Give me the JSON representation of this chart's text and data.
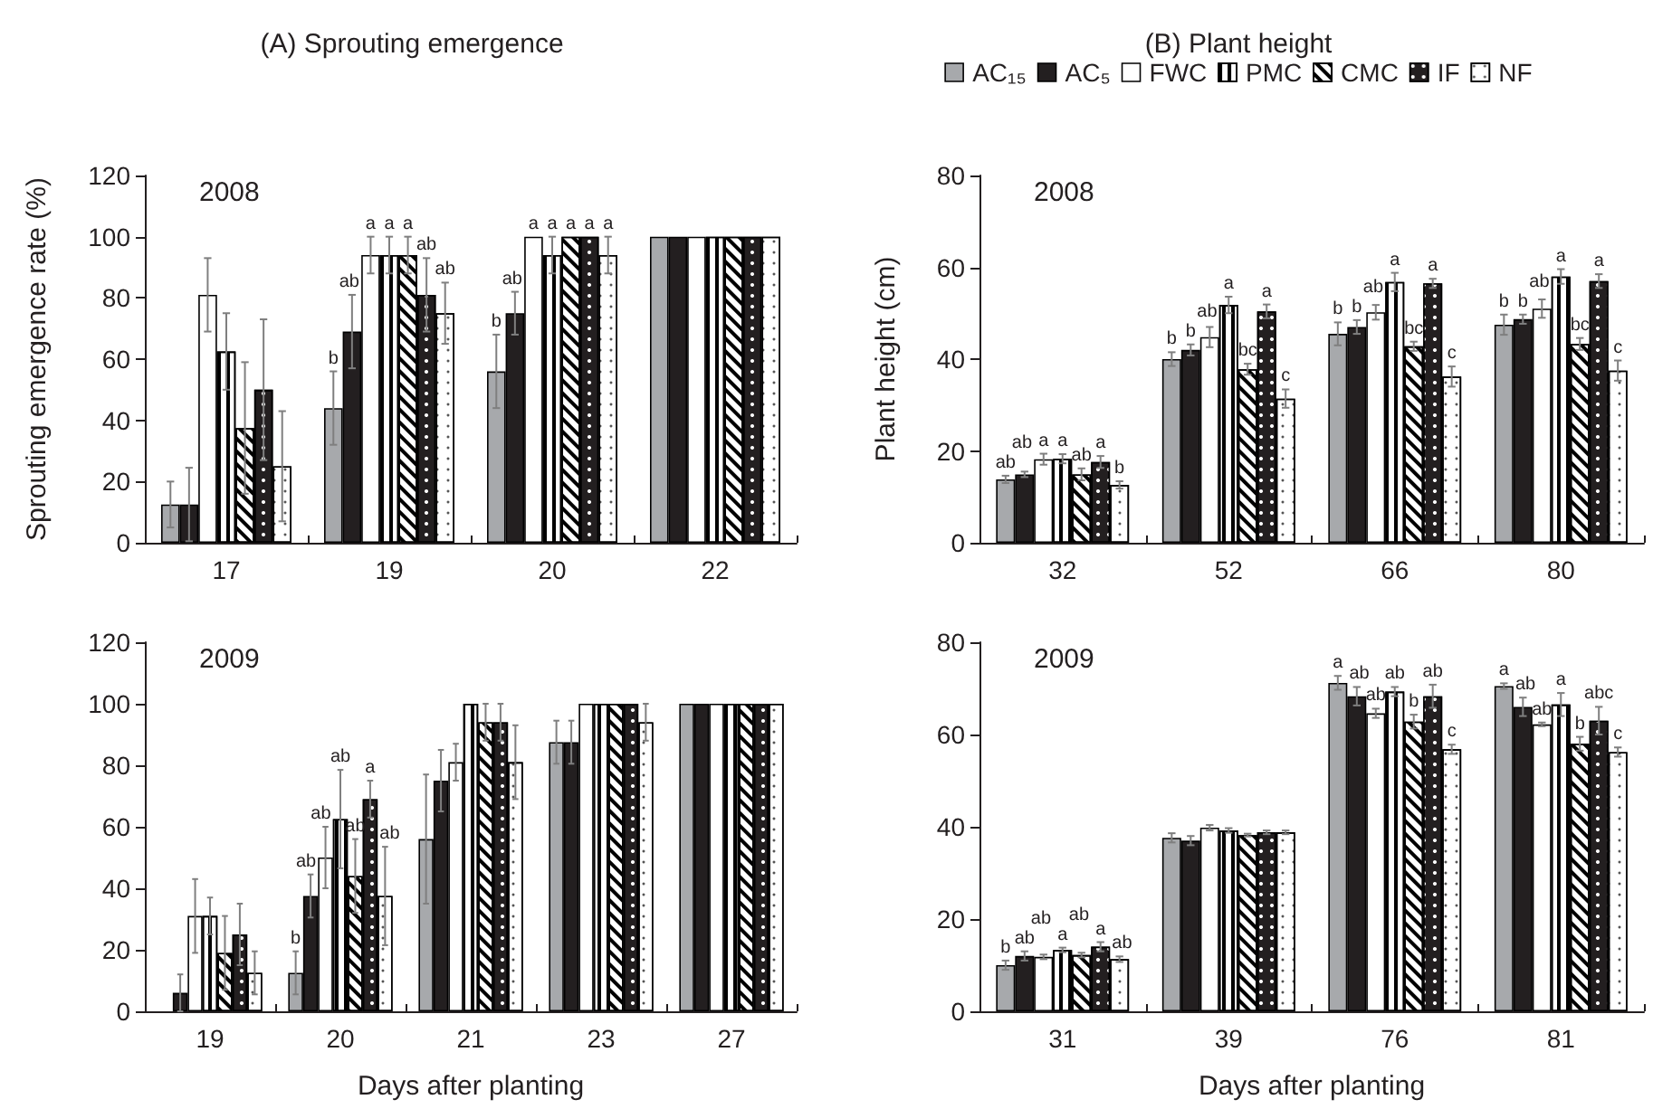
{
  "chart_data": [
    {
      "type": "bar",
      "title": "(A) Sprouting emergence",
      "ylabel": "Sprouting emergence rate (%)",
      "annotations": [
        "2008"
      ],
      "categories": [
        "17",
        "19",
        "20",
        "22"
      ],
      "ylim": [
        0,
        120
      ],
      "yticks": [
        0,
        20,
        40,
        60,
        80,
        100,
        120
      ],
      "grid": false,
      "series": [
        {
          "color": "#a7a9ac",
          "values": [
            12.5,
            44,
            56,
            100
          ],
          "errors": [
            7.5,
            12,
            12,
            null
          ],
          "value_labels": [
            null,
            "b",
            "b",
            null
          ]
        },
        {
          "color": "#231f20",
          "values": [
            12.5,
            69,
            75,
            100
          ],
          "errors": [
            12,
            12,
            7,
            null
          ],
          "value_labels": [
            null,
            "ab",
            "ab",
            null
          ]
        },
        {
          "color": "#ffffff",
          "values": [
            81,
            94,
            100,
            100
          ],
          "errors": [
            12,
            6,
            null,
            null
          ],
          "value_labels": [
            null,
            "a",
            "a",
            null
          ]
        },
        {
          "color": "#ffffff",
          "values": [
            62.5,
            94,
            94,
            100
          ],
          "errors": [
            12.5,
            6,
            6,
            null
          ],
          "value_labels": [
            null,
            "a",
            "a",
            null
          ]
        },
        {
          "color": "#ffffff",
          "values": [
            37.5,
            94,
            100,
            100
          ],
          "errors": [
            21.5,
            6,
            null,
            null
          ],
          "value_labels": [
            null,
            "a",
            "a",
            null
          ]
        },
        {
          "color": "#231f20",
          "values": [
            50,
            81,
            100,
            100
          ],
          "errors": [
            23,
            12,
            null,
            null
          ],
          "value_labels": [
            null,
            "ab",
            "a",
            null
          ]
        },
        {
          "color": "#ffffff",
          "values": [
            25,
            75,
            94,
            100
          ],
          "errors": [
            18,
            10,
            6,
            null
          ],
          "value_labels": [
            null,
            "ab",
            "a",
            null
          ]
        }
      ]
    },
    {
      "type": "bar",
      "title": "(B) Plant height",
      "ylabel": "Plant height (cm)",
      "annotations": [
        "2008"
      ],
      "categories": [
        "32",
        "52",
        "66",
        "80"
      ],
      "ylim": [
        0,
        80
      ],
      "yticks": [
        0,
        20,
        40,
        60,
        80
      ],
      "grid": false,
      "legend": "top",
      "series": [
        {
          "name": "AC₁₅",
          "color": "#a7a9ac",
          "values": [
            13.8,
            40,
            45.5,
            47.5
          ],
          "errors": [
            0.8,
            1.5,
            2.5,
            2.2
          ],
          "value_labels": [
            "ab",
            "b",
            "b",
            "b"
          ]
        },
        {
          "name": "AC₅",
          "color": "#231f20",
          "values": [
            14.9,
            42,
            47,
            48.7
          ],
          "errors": [
            0.6,
            1.2,
            1.5,
            1
          ],
          "value_labels": [
            "ab",
            "b",
            "b",
            "b"
          ]
        },
        {
          "name": "FWC",
          "color": "#ffffff",
          "values": [
            18.2,
            44.8,
            50.2,
            51
          ],
          "errors": [
            1.2,
            2.2,
            1.6,
            2
          ],
          "value_labels": [
            "a",
            "ab",
            "ab",
            "ab"
          ]
        },
        {
          "name": "PMC",
          "color": "#ffffff",
          "values": [
            18.3,
            51.8,
            56.8,
            58
          ],
          "errors": [
            1,
            1.8,
            2,
            1.6
          ],
          "value_labels": [
            "a",
            "a",
            "a",
            "a"
          ]
        },
        {
          "name": "CMC",
          "color": "#ffffff",
          "values": [
            14.9,
            37.8,
            42.8,
            43.3
          ],
          "errors": [
            1.3,
            1.2,
            1,
            1.3
          ],
          "value_labels": [
            "ab",
            "bc",
            "bc",
            "bc"
          ]
        },
        {
          "name": "IF",
          "color": "#231f20",
          "values": [
            17.6,
            50.4,
            56.5,
            57
          ],
          "errors": [
            1.3,
            1.5,
            1,
            1.5
          ],
          "value_labels": [
            "a",
            "a",
            "a",
            "a"
          ]
        },
        {
          "name": "NF",
          "color": "#ffffff",
          "values": [
            12.6,
            31.4,
            36.2,
            37.5
          ],
          "errors": [
            0.8,
            2,
            2.2,
            2.2
          ],
          "value_labels": [
            "b",
            "c",
            "c",
            "c"
          ]
        }
      ]
    },
    {
      "type": "bar",
      "xlabel": "Days after planting",
      "annotations": [
        "2009"
      ],
      "categories": [
        "19",
        "20",
        "21",
        "23",
        "27"
      ],
      "ylim": [
        0,
        120
      ],
      "yticks": [
        0,
        20,
        40,
        60,
        80,
        100,
        120
      ],
      "grid": false,
      "series": [
        {
          "color": "#a7a9ac",
          "values": [
            null,
            12.5,
            56,
            87.5,
            100
          ],
          "errors": [
            null,
            7,
            21,
            7,
            null
          ],
          "value_labels": [
            null,
            "b",
            null,
            null,
            null
          ]
        },
        {
          "color": "#231f20",
          "values": [
            6,
            37.5,
            75,
            87.5,
            100
          ],
          "errors": [
            6,
            7,
            10,
            7,
            null
          ],
          "value_labels": [
            null,
            "ab",
            null,
            null,
            null
          ]
        },
        {
          "color": "#ffffff",
          "values": [
            31,
            50,
            81,
            100,
            100
          ],
          "errors": [
            12,
            10,
            6,
            null,
            null
          ],
          "value_labels": [
            null,
            "ab",
            null,
            null,
            null
          ]
        },
        {
          "color": "#ffffff",
          "values": [
            31,
            62.5,
            100,
            100,
            100
          ],
          "errors": [
            6,
            16,
            null,
            null,
            null
          ],
          "value_labels": [
            null,
            "ab",
            null,
            null,
            null
          ]
        },
        {
          "color": "#ffffff",
          "values": [
            19,
            44,
            94,
            100,
            100
          ],
          "errors": [
            12,
            12,
            6,
            null,
            null
          ],
          "value_labels": [
            null,
            "ab",
            null,
            null,
            null
          ]
        },
        {
          "color": "#231f20",
          "values": [
            25,
            69,
            94,
            100,
            100
          ],
          "errors": [
            10,
            6,
            6,
            null,
            null
          ],
          "value_labels": [
            null,
            "a",
            null,
            null,
            null
          ]
        },
        {
          "color": "#ffffff",
          "values": [
            12.5,
            37.5,
            81,
            94,
            100
          ],
          "errors": [
            7,
            16,
            12,
            6,
            null
          ],
          "value_labels": [
            null,
            "ab",
            null,
            null,
            null
          ]
        }
      ]
    },
    {
      "type": "bar",
      "xlabel": "Days after planting",
      "annotations": [
        "2009"
      ],
      "categories": [
        "31",
        "39",
        "76",
        "81"
      ],
      "ylim": [
        0,
        80
      ],
      "yticks": [
        0,
        20,
        40,
        60,
        80
      ],
      "grid": false,
      "series": [
        {
          "color": "#a7a9ac",
          "values": [
            10,
            37.6,
            71.2,
            70.5
          ],
          "errors": [
            1,
            1,
            1.5,
            0.6
          ],
          "value_labels": [
            "b",
            null,
            "a",
            "a"
          ]
        },
        {
          "color": "#231f20",
          "values": [
            12,
            37,
            68.3,
            66
          ],
          "errors": [
            1,
            1,
            2,
            2
          ],
          "value_labels": [
            "ab",
            null,
            "ab",
            "ab"
          ]
        },
        {
          "color": "#ffffff",
          "values": [
            11.8,
            39.8,
            64.6,
            62.2
          ],
          "errors": [
            0.5,
            0.6,
            1,
            0.4
          ],
          "value_labels": [
            "ab",
            null,
            "ab",
            "ab"
          ]
        },
        {
          "color": "#ffffff",
          "values": [
            13.3,
            39.2,
            69.3,
            66.5
          ],
          "errors": [
            0.5,
            0.5,
            1,
            2.5
          ],
          "value_labels": [
            "a",
            null,
            "ab",
            "a"
          ]
        },
        {
          "color": "#ffffff",
          "values": [
            12.2,
            38.2,
            62.8,
            58
          ],
          "errors": [
            0.5,
            0.3,
            1.5,
            1.5
          ],
          "value_labels": [
            "ab",
            null,
            "b",
            "b"
          ]
        },
        {
          "color": "#231f20",
          "values": [
            14,
            38.8,
            68.3,
            63
          ],
          "errors": [
            1,
            0.4,
            2.5,
            3
          ],
          "value_labels": [
            "a",
            null,
            "ab",
            "abc"
          ]
        },
        {
          "color": "#ffffff",
          "values": [
            11.3,
            38.8,
            56.8,
            56.2
          ],
          "errors": [
            0.6,
            0.4,
            1,
            1
          ],
          "value_labels": [
            "ab",
            null,
            "c",
            "c"
          ]
        }
      ]
    }
  ]
}
